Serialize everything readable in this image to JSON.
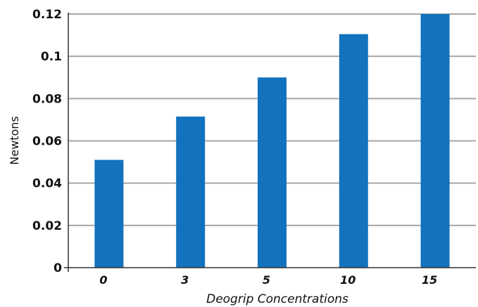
{
  "chart_data": {
    "type": "bar",
    "categories": [
      "0",
      "3",
      "5",
      "10",
      "15"
    ],
    "values": [
      0.051,
      0.0715,
      0.09,
      0.1105,
      0.12
    ],
    "xlabel": "Deogrip Concentrations",
    "ylabel": "Newtons",
    "ylim": [
      0,
      0.12
    ],
    "yticks": [
      "0",
      "0.02",
      "0.04",
      "0.06",
      "0.08",
      "0.1",
      "0.12"
    ],
    "grid": true,
    "bar_color": "#1272bd",
    "grid_color": "#a6a6a6"
  }
}
